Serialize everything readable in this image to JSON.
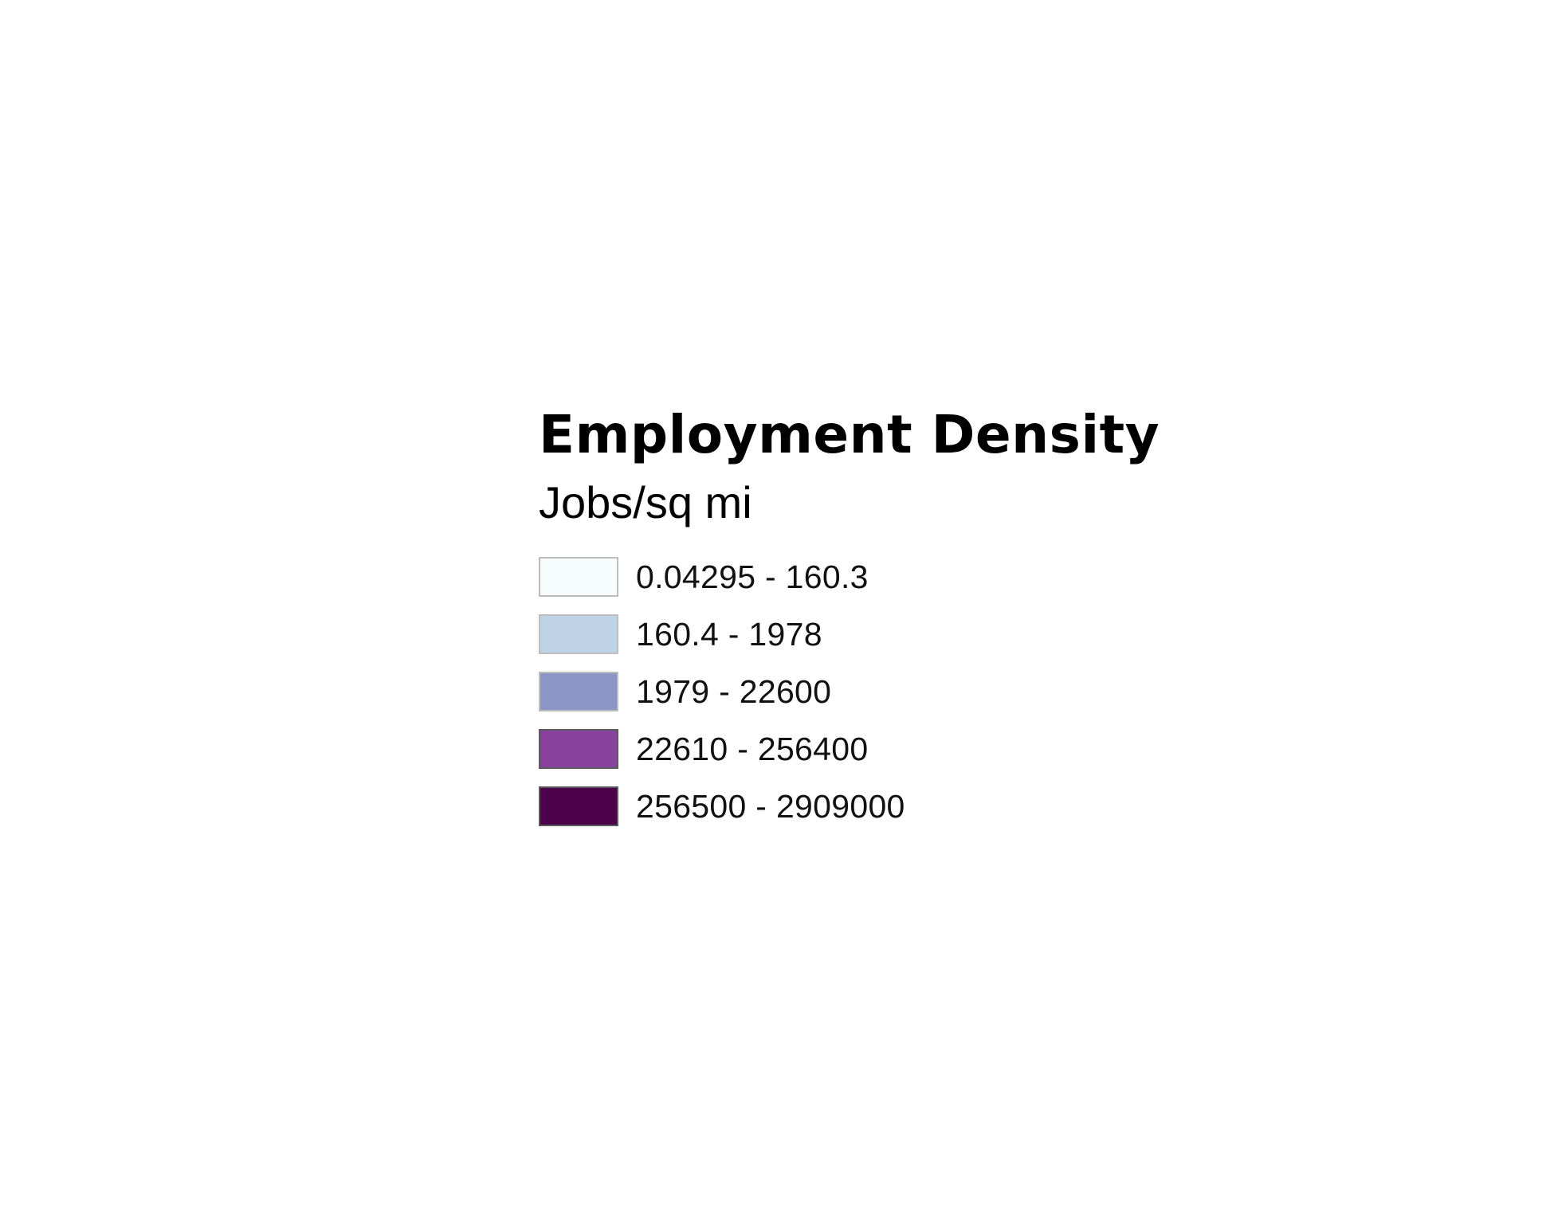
{
  "legend": {
    "title": "Employment Density",
    "subtitle": "Jobs/sq mi",
    "classes": [
      {
        "label": "0.04295 - 160.3",
        "color": "#f7fcfd"
      },
      {
        "label": "160.4 - 1978",
        "color": "#bfd3e6"
      },
      {
        "label": "1979 - 22600",
        "color": "#8c96c6"
      },
      {
        "label": "22610 - 256400",
        "color": "#88419d"
      },
      {
        "label": "256500 - 2909000",
        "color": "#4d004b"
      }
    ]
  }
}
